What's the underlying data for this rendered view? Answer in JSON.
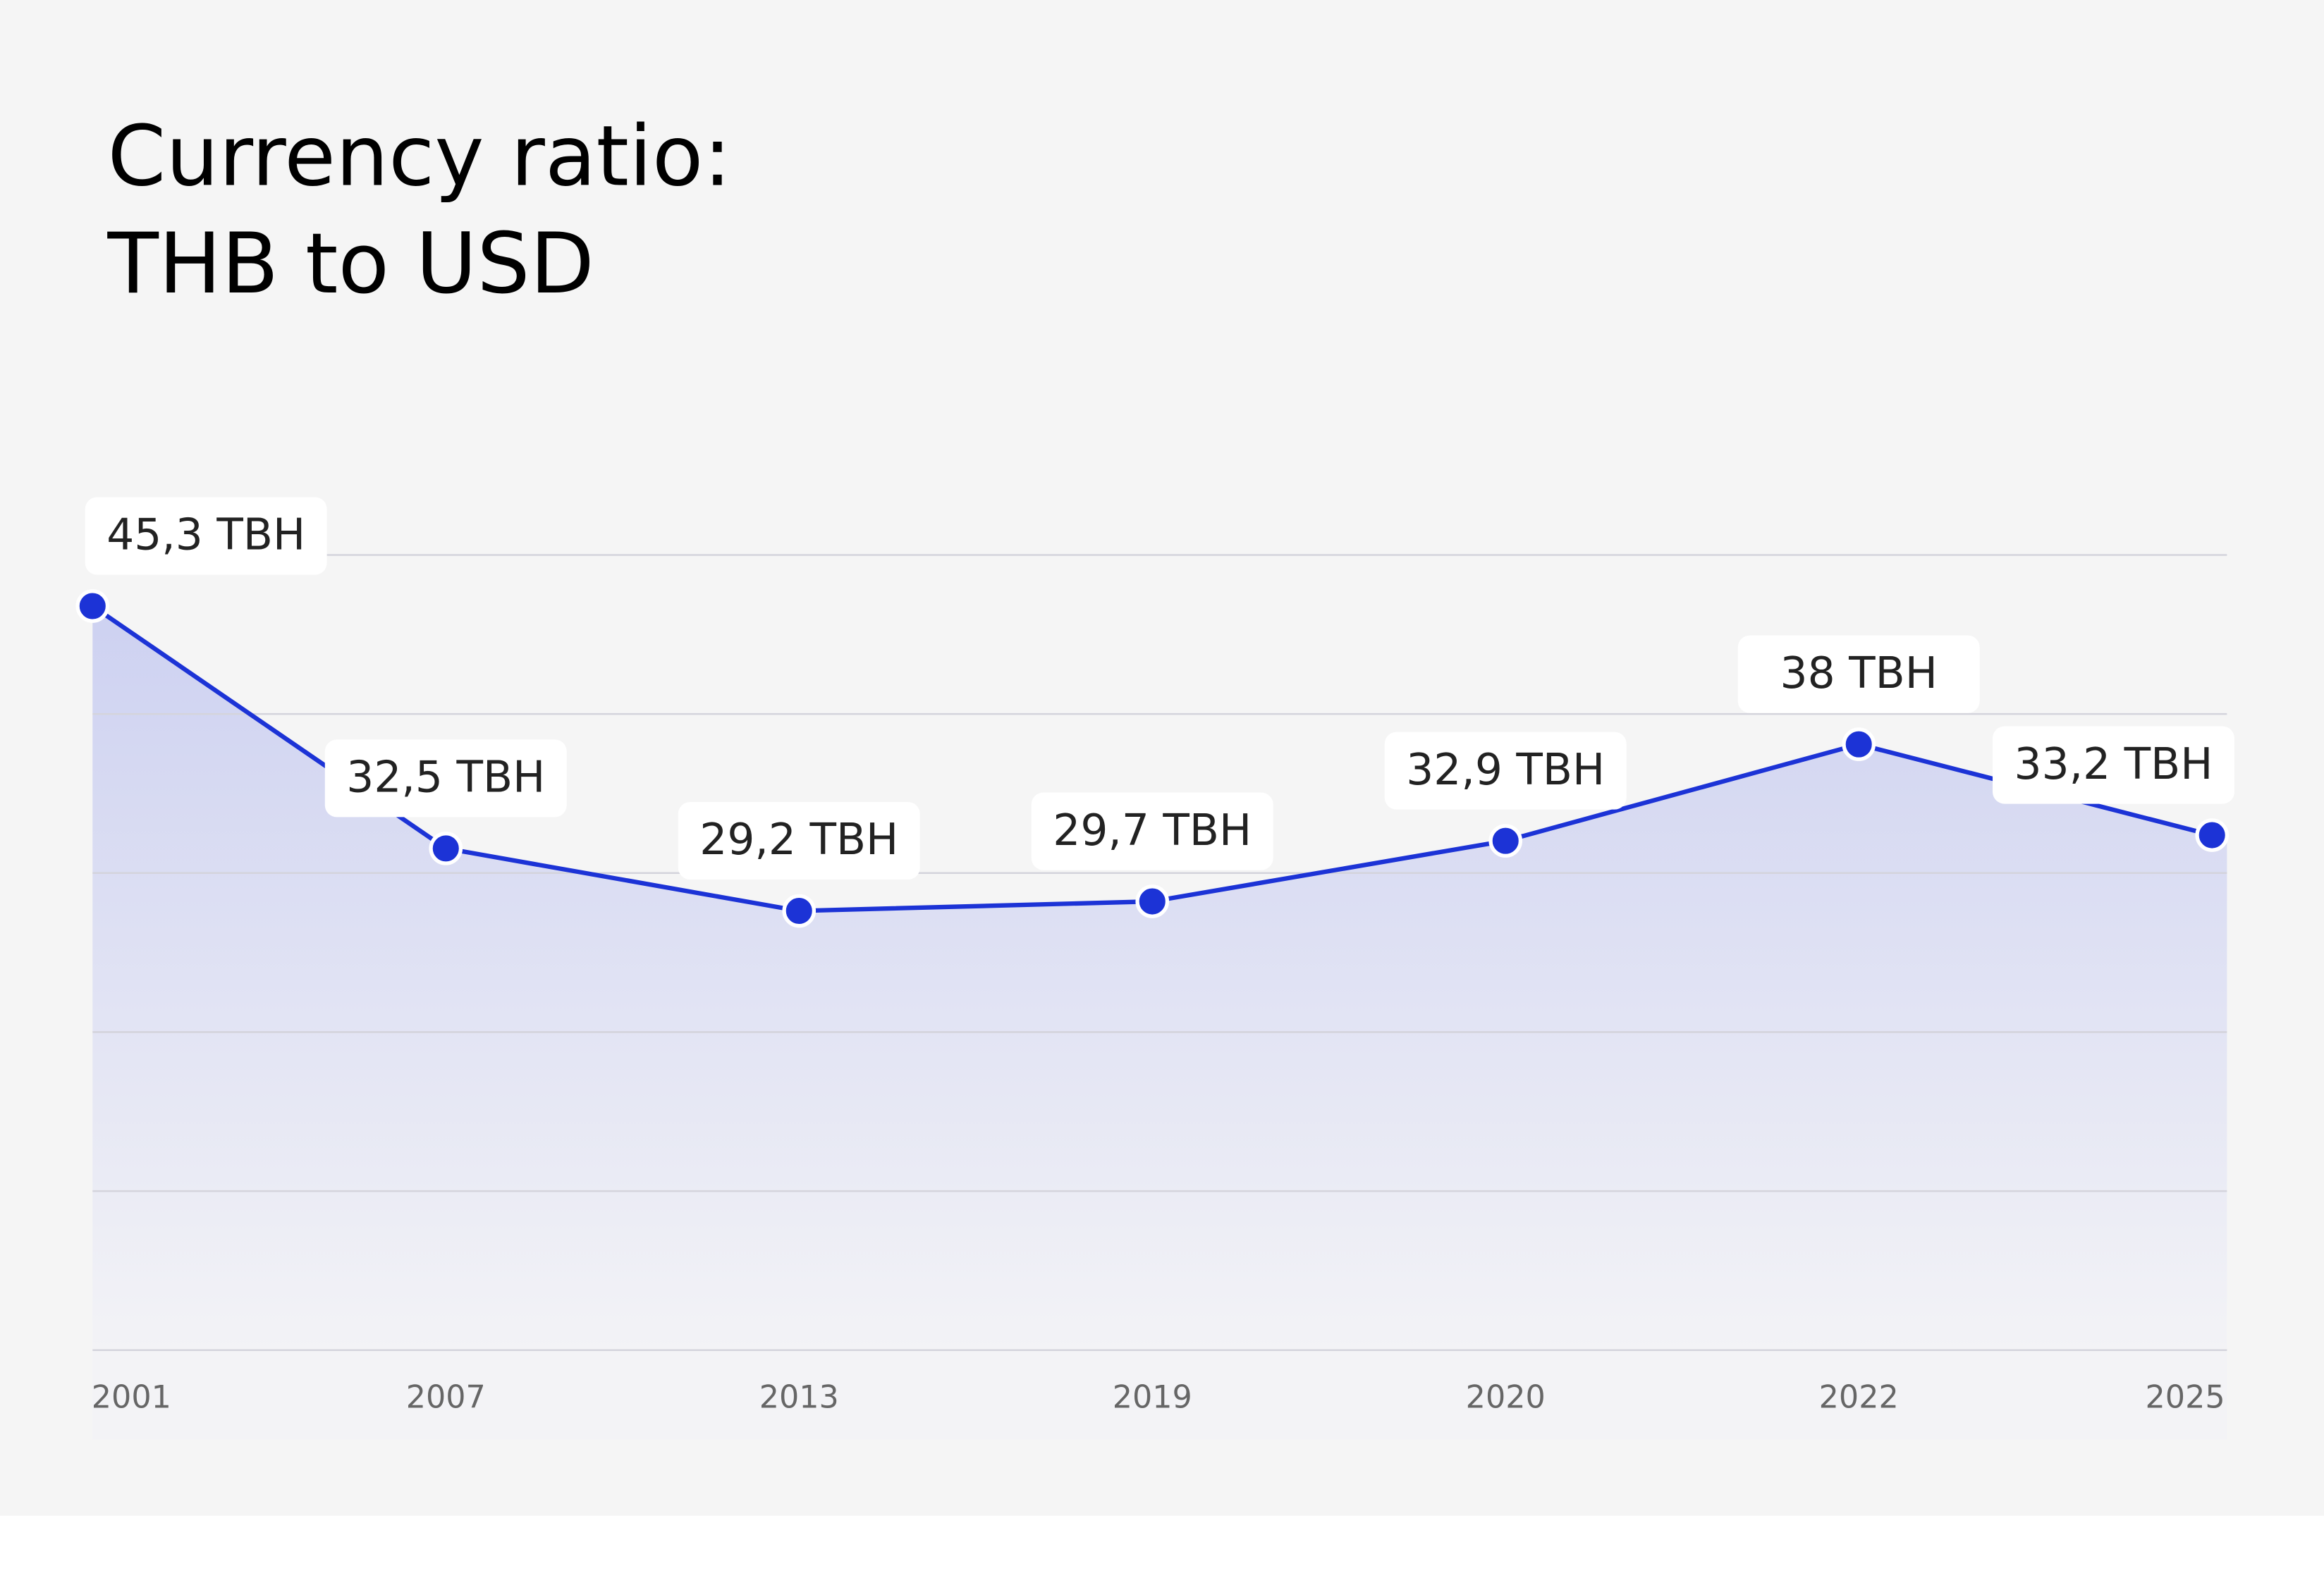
{
  "chart_data": {
    "type": "line",
    "title_lines": [
      "Currency ratio:",
      "THB to USD"
    ],
    "categories": [
      "2001",
      "2007",
      "2013",
      "2019",
      "2020",
      "2022",
      "2025"
    ],
    "series": [
      {
        "color": "#1c33d6",
        "values": [
          45.3,
          32.5,
          29.2,
          29.7,
          32.9,
          38,
          33.2
        ],
        "value_labels": [
          "45,3 TBH",
          "32,5 TBH",
          "29,2 TBH",
          "29,7 TBH",
          "32,9 TBH",
          "38 TBH",
          "33,2 TBH"
        ]
      }
    ],
    "ylim": [
      6,
      48
    ],
    "grid": true,
    "area": true
  }
}
